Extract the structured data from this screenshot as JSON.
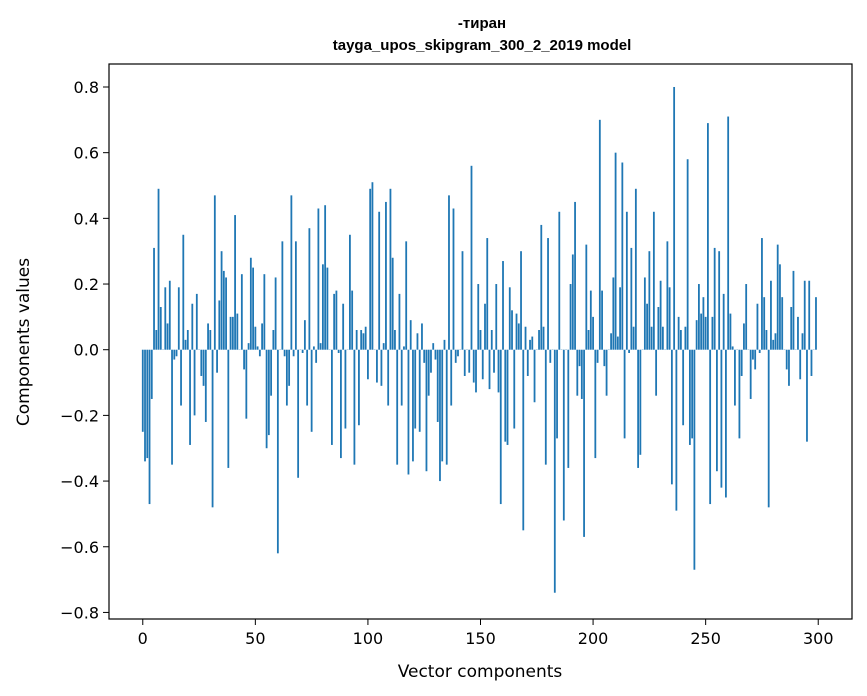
{
  "chart_data": {
    "type": "bar",
    "title": "-тиран",
    "subtitle": "tayga_upos_skipgram_300_2_2019 model",
    "xlabel": "Vector components",
    "ylabel": "Components values",
    "xlim": [
      -15,
      315
    ],
    "ylim": [
      -0.82,
      0.87
    ],
    "xticks": [
      0,
      50,
      100,
      150,
      200,
      250,
      300
    ],
    "xtick_labels": [
      "0",
      "50",
      "100",
      "150",
      "200",
      "250",
      "300"
    ],
    "yticks": [
      -0.8,
      -0.6,
      -0.4,
      -0.2,
      0.0,
      0.2,
      0.4,
      0.6,
      0.8
    ],
    "ytick_labels": [
      "−0.8",
      "−0.6",
      "−0.4",
      "−0.2",
      "0.0",
      "0.2",
      "0.4",
      "0.6",
      "0.8"
    ],
    "bar_color": "#1f77b4",
    "grid": false,
    "legend": "none",
    "values": [
      -0.25,
      -0.34,
      -0.33,
      -0.47,
      -0.15,
      0.31,
      0.06,
      0.49,
      0.13,
      0.0,
      0.19,
      0.08,
      0.21,
      -0.35,
      -0.03,
      -0.02,
      0.19,
      -0.17,
      0.35,
      0.03,
      0.06,
      -0.29,
      0.14,
      -0.2,
      0.17,
      0.0,
      -0.08,
      -0.11,
      -0.22,
      0.08,
      0.06,
      -0.48,
      0.47,
      -0.07,
      0.15,
      0.3,
      0.24,
      0.22,
      -0.36,
      0.1,
      0.1,
      0.41,
      0.11,
      0.0,
      0.23,
      -0.06,
      -0.21,
      0.02,
      0.28,
      0.25,
      0.07,
      0.01,
      -0.02,
      0.08,
      0.23,
      -0.3,
      -0.26,
      -0.14,
      0.06,
      0.22,
      -0.62,
      0.0,
      0.33,
      -0.02,
      -0.17,
      -0.11,
      0.47,
      -0.02,
      0.33,
      -0.39,
      0.0,
      -0.01,
      0.09,
      -0.17,
      0.37,
      -0.25,
      0.01,
      -0.04,
      0.43,
      0.02,
      0.26,
      0.44,
      0.25,
      0.0,
      -0.29,
      0.17,
      0.18,
      -0.01,
      -0.33,
      0.14,
      -0.24,
      0.0,
      0.35,
      0.18,
      -0.35,
      0.06,
      -0.23,
      0.06,
      0.05,
      0.07,
      -0.09,
      0.49,
      0.51,
      0.0,
      -0.1,
      0.42,
      -0.11,
      0.02,
      0.45,
      -0.17,
      0.49,
      0.28,
      0.06,
      -0.35,
      0.17,
      -0.17,
      0.01,
      0.33,
      -0.38,
      0.09,
      -0.34,
      -0.24,
      0.05,
      -0.25,
      0.08,
      -0.04,
      -0.37,
      -0.14,
      -0.07,
      0.02,
      -0.03,
      -0.22,
      -0.4,
      -0.34,
      0.03,
      -0.35,
      0.47,
      -0.17,
      0.43,
      -0.04,
      -0.02,
      0.0,
      0.3,
      -0.08,
      0.0,
      -0.07,
      0.56,
      -0.1,
      -0.13,
      0.2,
      0.06,
      -0.09,
      0.14,
      0.34,
      -0.12,
      0.06,
      -0.07,
      0.2,
      -0.13,
      -0.47,
      0.27,
      -0.28,
      -0.29,
      0.19,
      0.12,
      -0.24,
      0.11,
      0.08,
      0.3,
      -0.55,
      0.07,
      -0.08,
      0.03,
      0.04,
      -0.16,
      0.0,
      0.06,
      0.38,
      0.07,
      -0.35,
      0.34,
      -0.04,
      0.0,
      -0.74,
      -0.27,
      0.42,
      0.0,
      -0.52,
      0.0,
      -0.36,
      0.2,
      0.29,
      0.45,
      -0.14,
      -0.05,
      -0.15,
      -0.57,
      0.32,
      0.06,
      0.18,
      0.1,
      -0.33,
      -0.04,
      0.7,
      0.18,
      -0.05,
      -0.14,
      0.0,
      0.05,
      0.22,
      0.6,
      0.04,
      0.19,
      0.57,
      -0.27,
      0.42,
      -0.01,
      0.31,
      0.07,
      0.49,
      -0.36,
      -0.32,
      0.0,
      0.22,
      0.14,
      0.3,
      0.07,
      0.42,
      -0.14,
      0.13,
      0.21,
      0.07,
      0.0,
      0.33,
      0.19,
      -0.41,
      0.8,
      -0.49,
      0.1,
      0.06,
      -0.23,
      0.07,
      0.58,
      -0.29,
      -0.27,
      -0.67,
      0.09,
      0.2,
      0.11,
      0.16,
      0.1,
      0.69,
      -0.47,
      0.1,
      0.31,
      -0.37,
      0.3,
      -0.42,
      0.17,
      -0.45,
      0.71,
      0.11,
      0.01,
      -0.17,
      0.0,
      -0.27,
      -0.08,
      0.08,
      0.2,
      0.0,
      -0.15,
      -0.03,
      -0.06,
      0.14,
      -0.01,
      0.34,
      0.16,
      0.06,
      -0.48,
      0.21,
      0.03,
      0.05,
      0.32,
      0.26,
      0.16,
      0.0,
      -0.06,
      -0.11,
      0.13,
      0.24,
      0.0,
      0.1,
      -0.09,
      0.05,
      0.21,
      -0.28,
      0.21,
      -0.08,
      0.0,
      0.16
    ]
  }
}
